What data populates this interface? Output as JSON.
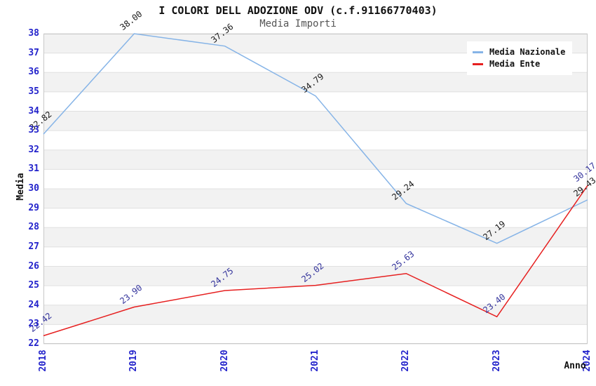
{
  "header": {
    "title": "I COLORI DELL ADOZIONE ODV (c.f.91166770403)",
    "subtitle": "Media Importi"
  },
  "chart_data": {
    "type": "line",
    "title": "I COLORI DELL ADOZIONE ODV (c.f.91166770403)",
    "subtitle": "Media Importi",
    "xlabel": "Anno",
    "ylabel": "Media",
    "categories": [
      "2018",
      "2019",
      "2020",
      "2021",
      "2022",
      "2023",
      "2024"
    ],
    "series": [
      {
        "name": "Media Nazionale",
        "color": "#86b4e7",
        "label_color": "#1a1a1a",
        "values": [
          32.82,
          38.0,
          37.36,
          34.79,
          29.24,
          27.19,
          29.43
        ]
      },
      {
        "name": "Media Ente",
        "color": "#e62020",
        "label_color": "#32329b",
        "values": [
          22.42,
          23.9,
          24.75,
          25.02,
          25.63,
          23.4,
          30.17
        ]
      }
    ],
    "ylim": [
      22,
      38
    ],
    "ytick_step": 1,
    "grid": "horizontal-alternating-bands",
    "legend_position": "top-right",
    "colors": {
      "tick_label": "#2323cb",
      "band_fill": "#f2f2f2",
      "gridline": "#e0e0e0",
      "plot_border": "#c8c8c8"
    }
  }
}
